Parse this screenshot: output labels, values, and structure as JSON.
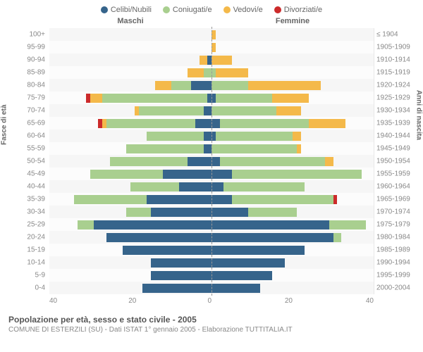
{
  "legend": [
    {
      "label": "Celibi/Nubili",
      "color": "#36648b"
    },
    {
      "label": "Coniugati/e",
      "color": "#a9cf8f"
    },
    {
      "label": "Vedovi/e",
      "color": "#f4b94a"
    },
    {
      "label": "Divorziati/e",
      "color": "#cc2b2b"
    }
  ],
  "colHeaders": {
    "left": "Maschi",
    "right": "Femmine"
  },
  "yAxisLeft": "Fasce di età",
  "yAxisRight": "Anni di nascita",
  "title1": "Popolazione per età, sesso e stato civile - 2005",
  "title2": "COMUNE DI ESTERZILI (SU) - Dati ISTAT 1° gennaio 2005 - Elaborazione TUTTITALIA.IT",
  "xTicks": {
    "max": 40,
    "step": 20
  },
  "chart": {
    "type": "population-pyramid",
    "xlim": 40,
    "background_alt": [
      "#f6f6f6",
      "#fcfcfc"
    ],
    "divider_color": "#999999",
    "grid_color": "#e8e8e8",
    "label_fontsize": 10,
    "data": [
      {
        "age": "100+",
        "year": "≤ 1904",
        "m": [
          0,
          0,
          0,
          0
        ],
        "f": [
          0,
          0,
          1,
          0
        ]
      },
      {
        "age": "95-99",
        "year": "1905-1909",
        "m": [
          0,
          0,
          0,
          0
        ],
        "f": [
          0,
          0,
          1,
          0
        ]
      },
      {
        "age": "90-94",
        "year": "1910-1914",
        "m": [
          1,
          0,
          2,
          0
        ],
        "f": [
          0,
          0,
          5,
          0
        ]
      },
      {
        "age": "85-89",
        "year": "1915-1919",
        "m": [
          0,
          2,
          4,
          0
        ],
        "f": [
          0,
          1,
          8,
          0
        ]
      },
      {
        "age": "80-84",
        "year": "1920-1924",
        "m": [
          5,
          5,
          4,
          0
        ],
        "f": [
          0,
          9,
          18,
          0
        ]
      },
      {
        "age": "75-79",
        "year": "1925-1929",
        "m": [
          1,
          26,
          3,
          1
        ],
        "f": [
          1,
          14,
          9,
          0
        ]
      },
      {
        "age": "70-74",
        "year": "1930-1934",
        "m": [
          2,
          16,
          1,
          0
        ],
        "f": [
          0,
          16,
          6,
          0
        ]
      },
      {
        "age": "65-69",
        "year": "1935-1939",
        "m": [
          4,
          22,
          1,
          1
        ],
        "f": [
          2,
          22,
          9,
          0
        ]
      },
      {
        "age": "60-64",
        "year": "1940-1944",
        "m": [
          2,
          14,
          0,
          0
        ],
        "f": [
          1,
          19,
          2,
          0
        ]
      },
      {
        "age": "55-59",
        "year": "1945-1949",
        "m": [
          2,
          19,
          0,
          0
        ],
        "f": [
          0,
          21,
          1,
          0
        ]
      },
      {
        "age": "50-54",
        "year": "1950-1954",
        "m": [
          6,
          19,
          0,
          0
        ],
        "f": [
          2,
          26,
          2,
          0
        ]
      },
      {
        "age": "45-49",
        "year": "1955-1959",
        "m": [
          12,
          18,
          0,
          0
        ],
        "f": [
          5,
          32,
          0,
          0
        ]
      },
      {
        "age": "40-44",
        "year": "1960-1964",
        "m": [
          8,
          12,
          0,
          0
        ],
        "f": [
          3,
          20,
          0,
          0
        ]
      },
      {
        "age": "35-39",
        "year": "1965-1969",
        "m": [
          16,
          18,
          0,
          0
        ],
        "f": [
          5,
          25,
          0,
          1
        ]
      },
      {
        "age": "30-34",
        "year": "1970-1974",
        "m": [
          15,
          6,
          0,
          0
        ],
        "f": [
          9,
          12,
          0,
          0
        ]
      },
      {
        "age": "25-29",
        "year": "1975-1979",
        "m": [
          29,
          4,
          0,
          0
        ],
        "f": [
          29,
          9,
          0,
          0
        ]
      },
      {
        "age": "20-24",
        "year": "1980-1984",
        "m": [
          26,
          0,
          0,
          0
        ],
        "f": [
          30,
          2,
          0,
          0
        ]
      },
      {
        "age": "15-19",
        "year": "1985-1989",
        "m": [
          22,
          0,
          0,
          0
        ],
        "f": [
          23,
          0,
          0,
          0
        ]
      },
      {
        "age": "10-14",
        "year": "1990-1994",
        "m": [
          15,
          0,
          0,
          0
        ],
        "f": [
          18,
          0,
          0,
          0
        ]
      },
      {
        "age": "5-9",
        "year": "1995-1999",
        "m": [
          15,
          0,
          0,
          0
        ],
        "f": [
          15,
          0,
          0,
          0
        ]
      },
      {
        "age": "0-4",
        "year": "2000-2004",
        "m": [
          17,
          0,
          0,
          0
        ],
        "f": [
          12,
          0,
          0,
          0
        ]
      }
    ]
  }
}
